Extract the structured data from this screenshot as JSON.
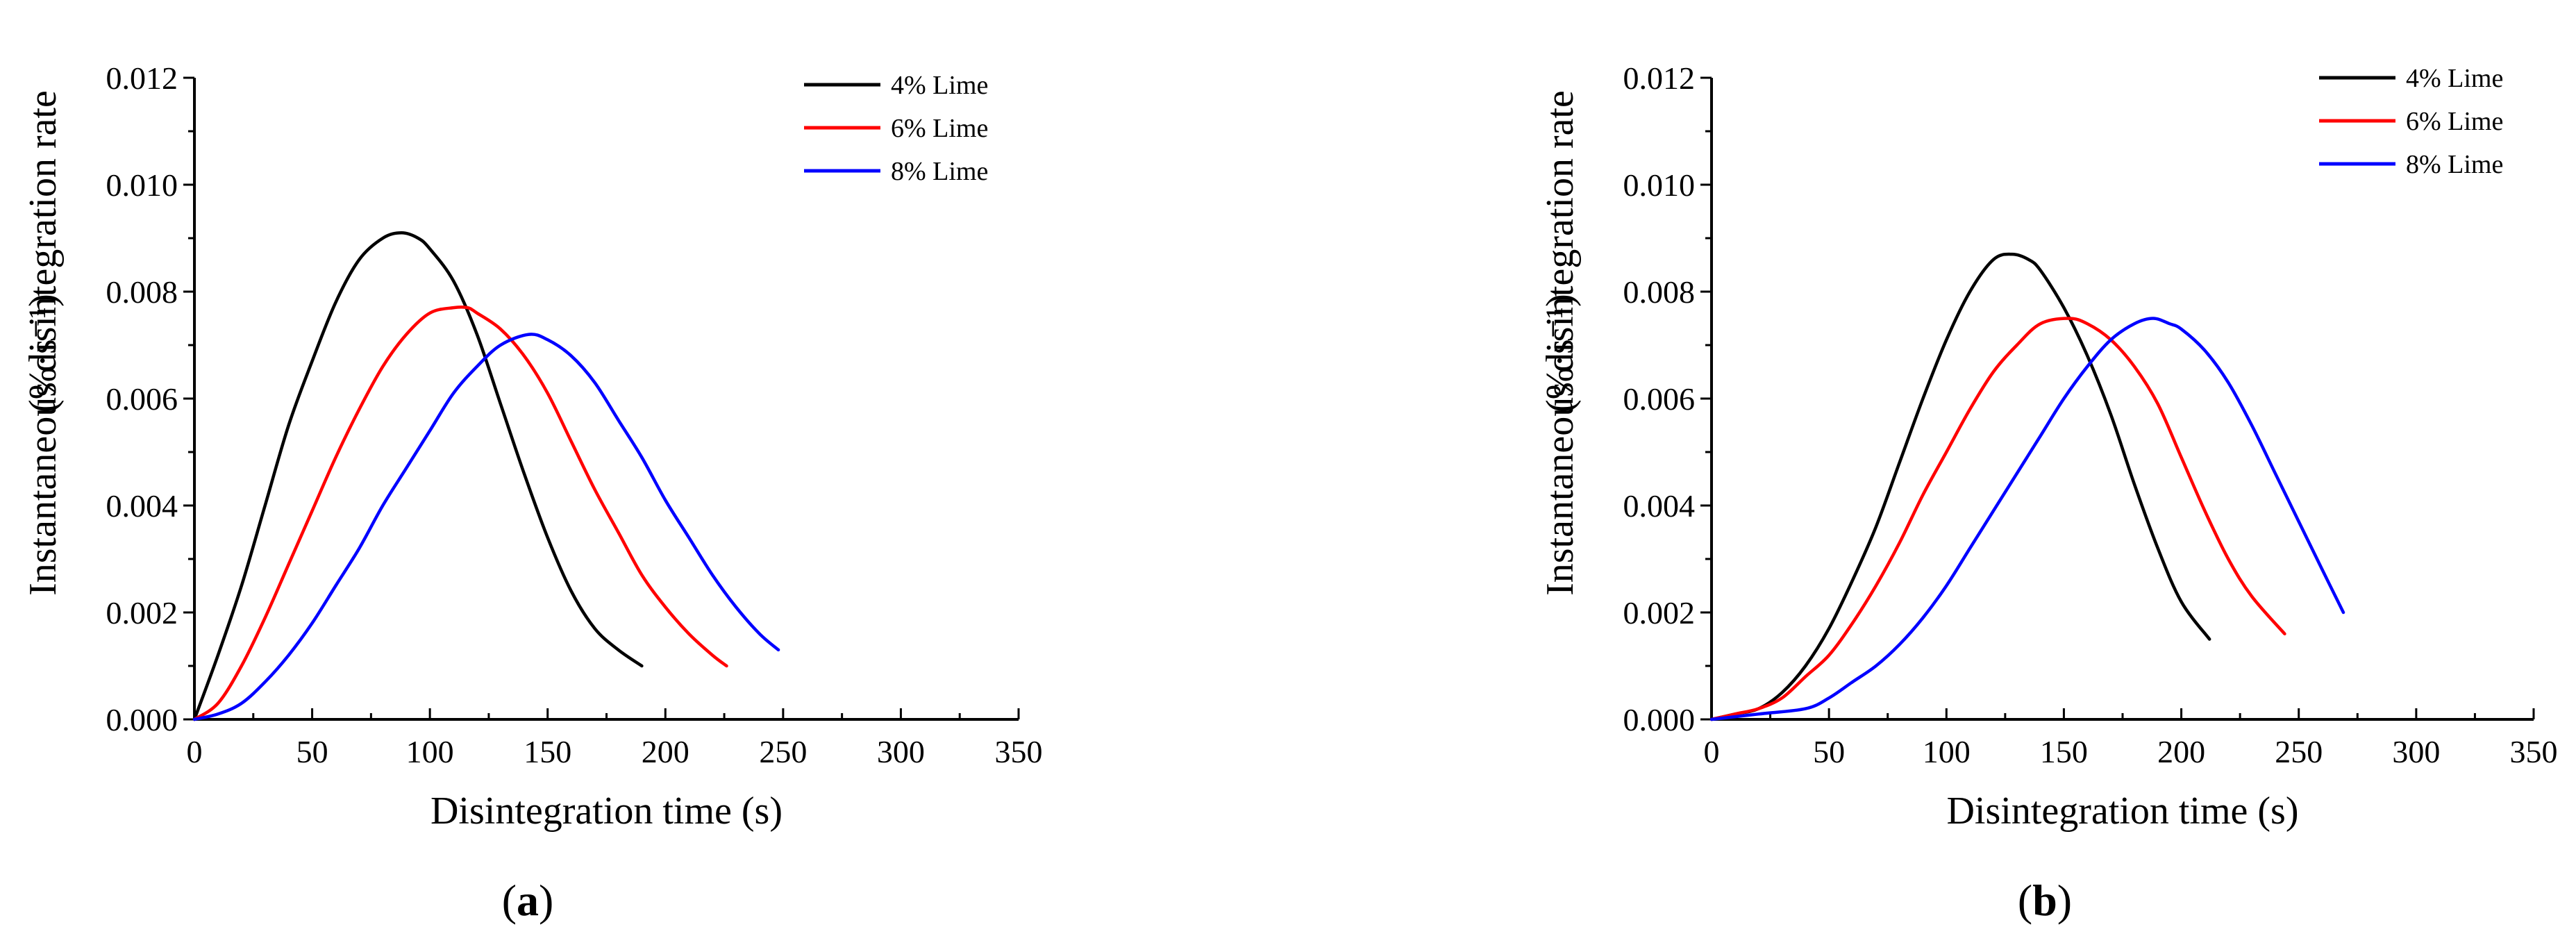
{
  "chart_data": [
    {
      "type": "line",
      "panel_label": "a",
      "xlabel": "Disintegration time (s)",
      "ylabel": "Instantaneous disintegration rate",
      "ylabel_unit": "(%·s⁻¹)",
      "xlim": [
        0,
        350
      ],
      "ylim": [
        0,
        0.012
      ],
      "xticks": [
        "0",
        "50",
        "100",
        "150",
        "200",
        "250",
        "300",
        "350"
      ],
      "yticks": [
        "0.000",
        "0.002",
        "0.004",
        "0.006",
        "0.008",
        "0.010",
        "0.012"
      ],
      "legend_position": "top-right",
      "series": [
        {
          "name": "4% Lime",
          "color": "#000000",
          "x": [
            0,
            10,
            20,
            30,
            40,
            50,
            60,
            70,
            80,
            88,
            95,
            100,
            110,
            120,
            130,
            140,
            150,
            160,
            170,
            180,
            190
          ],
          "y": [
            0,
            0.0012,
            0.0025,
            0.004,
            0.0055,
            0.0067,
            0.0078,
            0.0086,
            0.009,
            0.0091,
            0.009,
            0.0088,
            0.0082,
            0.0072,
            0.0059,
            0.0046,
            0.0034,
            0.0024,
            0.0017,
            0.0013,
            0.001
          ]
        },
        {
          "name": "6% Lime",
          "color": "#ff0000",
          "x": [
            0,
            10,
            20,
            30,
            40,
            50,
            60,
            70,
            80,
            90,
            100,
            110,
            116,
            120,
            130,
            140,
            150,
            160,
            170,
            180,
            190,
            200,
            210,
            220,
            226
          ],
          "y": [
            0,
            0.0003,
            0.001,
            0.0019,
            0.0029,
            0.0039,
            0.0049,
            0.0058,
            0.0066,
            0.0072,
            0.0076,
            0.0077,
            0.0077,
            0.0076,
            0.0073,
            0.0068,
            0.0061,
            0.0052,
            0.0043,
            0.0035,
            0.0027,
            0.0021,
            0.0016,
            0.0012,
            0.001
          ]
        },
        {
          "name": "8% Lime",
          "color": "#0000ff",
          "x": [
            0,
            10,
            20,
            30,
            40,
            50,
            60,
            70,
            80,
            90,
            100,
            110,
            120,
            130,
            142,
            150,
            160,
            170,
            180,
            190,
            200,
            210,
            220,
            230,
            240,
            248
          ],
          "y": [
            0,
            0.0001,
            0.0003,
            0.0007,
            0.0012,
            0.0018,
            0.0025,
            0.0032,
            0.004,
            0.0047,
            0.0054,
            0.0061,
            0.0066,
            0.007,
            0.0072,
            0.0071,
            0.0068,
            0.0063,
            0.0056,
            0.0049,
            0.0041,
            0.0034,
            0.0027,
            0.0021,
            0.0016,
            0.0013
          ]
        }
      ]
    },
    {
      "type": "line",
      "panel_label": "b",
      "xlabel": "Disintegration time (s)",
      "ylabel": "Instantaneous disintegration rate",
      "ylabel_unit": "(%·s⁻¹)",
      "xlim": [
        0,
        350
      ],
      "ylim": [
        0,
        0.012
      ],
      "xticks": [
        "0",
        "50",
        "100",
        "150",
        "200",
        "250",
        "300",
        "350"
      ],
      "yticks": [
        "0.000",
        "0.002",
        "0.004",
        "0.006",
        "0.008",
        "0.010",
        "0.012"
      ],
      "legend_position": "top-right",
      "series": [
        {
          "name": "4% Lime",
          "color": "#000000",
          "x": [
            0,
            10,
            20,
            30,
            40,
            50,
            60,
            70,
            80,
            90,
            100,
            110,
            120,
            128,
            135,
            140,
            150,
            160,
            170,
            180,
            190,
            200,
            212
          ],
          "y": [
            0,
            0.0001,
            0.0002,
            0.0005,
            0.001,
            0.0017,
            0.0026,
            0.0036,
            0.0048,
            0.006,
            0.0071,
            0.008,
            0.0086,
            0.0087,
            0.0086,
            0.0084,
            0.0077,
            0.0068,
            0.0057,
            0.0044,
            0.0032,
            0.0022,
            0.0015
          ]
        },
        {
          "name": "6% Lime",
          "color": "#ff0000",
          "x": [
            0,
            10,
            20,
            30,
            40,
            50,
            60,
            70,
            80,
            90,
            100,
            110,
            120,
            130,
            140,
            152,
            160,
            170,
            180,
            190,
            200,
            210,
            220,
            230,
            244
          ],
          "y": [
            0,
            0.0001,
            0.0002,
            0.0004,
            0.0008,
            0.0012,
            0.0018,
            0.0025,
            0.0033,
            0.0042,
            0.005,
            0.0058,
            0.0065,
            0.007,
            0.0074,
            0.0075,
            0.0074,
            0.0071,
            0.0066,
            0.0059,
            0.0049,
            0.0039,
            0.003,
            0.0023,
            0.0016
          ]
        },
        {
          "name": "8% Lime",
          "color": "#0000ff",
          "x": [
            0,
            20,
            40,
            50,
            60,
            70,
            80,
            90,
            100,
            110,
            120,
            130,
            140,
            150,
            160,
            170,
            180,
            188,
            195,
            200,
            210,
            220,
            230,
            240,
            250,
            260,
            269
          ],
          "y": [
            0,
            0.0001,
            0.0002,
            0.0004,
            0.0007,
            0.001,
            0.0014,
            0.0019,
            0.0025,
            0.0032,
            0.0039,
            0.0046,
            0.0053,
            0.006,
            0.0066,
            0.0071,
            0.0074,
            0.0075,
            0.0074,
            0.0073,
            0.0069,
            0.0063,
            0.0055,
            0.0046,
            0.0037,
            0.0028,
            0.002
          ]
        }
      ]
    }
  ]
}
